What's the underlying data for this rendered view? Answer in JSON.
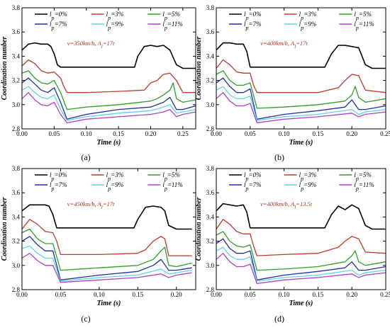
{
  "chart_data": [
    {
      "type": "line",
      "panel_label": "(a)",
      "annotation": "v=350km/h, A_l=17t",
      "xlabel": "Time (s)",
      "ylabel": "Coordination number",
      "xlim": [
        0,
        0.27
      ],
      "ylim": [
        2.8,
        3.8
      ],
      "xticks": [
        "0.00",
        "0.05",
        "0.10",
        "0.15",
        "0.20",
        "0.25"
      ],
      "yticks": [
        "2.8",
        "3.0",
        "3.2",
        "3.4",
        "3.6",
        "3.8"
      ],
      "legend_position": "top",
      "series": [
        {
          "name": "l_p=0%",
          "color": "#000000",
          "x": [
            0,
            0.01,
            0.02,
            0.03,
            0.04,
            0.045,
            0.05,
            0.055,
            0.06,
            0.1,
            0.15,
            0.175,
            0.18,
            0.19,
            0.2,
            0.21,
            0.22,
            0.23,
            0.24,
            0.25,
            0.27
          ],
          "y": [
            3.45,
            3.5,
            3.51,
            3.5,
            3.5,
            3.48,
            3.42,
            3.33,
            3.31,
            3.31,
            3.31,
            3.31,
            3.4,
            3.48,
            3.49,
            3.48,
            3.49,
            3.45,
            3.33,
            3.3,
            3.3
          ]
        },
        {
          "name": "l_p=3%",
          "color": "#c0392b",
          "x": [
            0,
            0.01,
            0.02,
            0.03,
            0.04,
            0.05,
            0.06,
            0.065,
            0.07,
            0.1,
            0.15,
            0.19,
            0.2,
            0.21,
            0.22,
            0.23,
            0.24,
            0.25,
            0.27
          ],
          "y": [
            3.32,
            3.37,
            3.34,
            3.28,
            3.26,
            3.27,
            3.22,
            3.15,
            3.1,
            3.1,
            3.11,
            3.12,
            3.18,
            3.2,
            3.25,
            3.26,
            3.2,
            3.1,
            3.1
          ]
        },
        {
          "name": "l_p=5%",
          "color": "#2ca02c",
          "x": [
            0,
            0.01,
            0.02,
            0.03,
            0.04,
            0.05,
            0.06,
            0.07,
            0.1,
            0.15,
            0.2,
            0.21,
            0.22,
            0.23,
            0.235,
            0.24,
            0.25,
            0.27
          ],
          "y": [
            3.26,
            3.28,
            3.22,
            3.18,
            3.17,
            3.2,
            3.1,
            2.96,
            2.98,
            3.0,
            3.03,
            3.05,
            3.08,
            3.12,
            3.18,
            3.05,
            3.02,
            3.04
          ]
        },
        {
          "name": "l_p=7%",
          "color": "#1f2fa8",
          "x": [
            0,
            0.01,
            0.02,
            0.03,
            0.04,
            0.05,
            0.06,
            0.07,
            0.1,
            0.15,
            0.2,
            0.22,
            0.23,
            0.24,
            0.25,
            0.27
          ],
          "y": [
            3.18,
            3.22,
            3.17,
            3.12,
            3.1,
            3.14,
            3.02,
            2.88,
            2.92,
            2.96,
            2.98,
            3.02,
            3.06,
            2.96,
            2.96,
            2.99
          ]
        },
        {
          "name": "l_p=9%",
          "color": "#5fd3e6",
          "x": [
            0,
            0.01,
            0.02,
            0.03,
            0.04,
            0.05,
            0.06,
            0.07,
            0.1,
            0.15,
            0.2,
            0.22,
            0.23,
            0.24,
            0.25,
            0.27
          ],
          "y": [
            3.12,
            3.15,
            3.1,
            3.06,
            3.05,
            3.08,
            2.96,
            2.87,
            2.9,
            2.93,
            2.95,
            2.98,
            3.0,
            2.93,
            2.94,
            2.96
          ]
        },
        {
          "name": "l_p=11%",
          "color": "#b03ec8",
          "x": [
            0,
            0.01,
            0.02,
            0.03,
            0.04,
            0.05,
            0.06,
            0.07,
            0.1,
            0.15,
            0.2,
            0.22,
            0.23,
            0.24,
            0.25,
            0.27
          ],
          "y": [
            3.05,
            3.1,
            3.04,
            3.0,
            2.99,
            3.02,
            2.92,
            2.85,
            2.88,
            2.9,
            2.92,
            2.94,
            2.96,
            2.9,
            2.92,
            2.94
          ]
        }
      ]
    },
    {
      "type": "line",
      "panel_label": "(b)",
      "annotation": "v=400km/h, A_l=17t",
      "xlabel": "Time (s)",
      "ylabel": "Coordination number",
      "xlim": [
        0,
        0.25
      ],
      "ylim": [
        2.8,
        3.8
      ],
      "xticks": [
        "0.00",
        "0.05",
        "0.10",
        "0.15",
        "0.20",
        "0.25"
      ],
      "yticks": [
        "2.8",
        "3.0",
        "3.2",
        "3.4",
        "3.6",
        "3.8"
      ],
      "legend_position": "top",
      "series": [
        {
          "name": "l_p=0%",
          "color": "#000000",
          "x": [
            0,
            0.01,
            0.02,
            0.03,
            0.04,
            0.045,
            0.05,
            0.1,
            0.15,
            0.16,
            0.17,
            0.18,
            0.19,
            0.2,
            0.21,
            0.22,
            0.23,
            0.25
          ],
          "y": [
            3.45,
            3.51,
            3.51,
            3.5,
            3.5,
            3.44,
            3.31,
            3.31,
            3.31,
            3.31,
            3.42,
            3.49,
            3.49,
            3.48,
            3.47,
            3.33,
            3.3,
            3.3
          ]
        },
        {
          "name": "l_p=3%",
          "color": "#c0392b",
          "x": [
            0,
            0.01,
            0.02,
            0.03,
            0.04,
            0.05,
            0.055,
            0.06,
            0.1,
            0.15,
            0.18,
            0.19,
            0.2,
            0.21,
            0.22,
            0.25
          ],
          "y": [
            3.3,
            3.37,
            3.33,
            3.27,
            3.26,
            3.26,
            3.16,
            3.1,
            3.1,
            3.1,
            3.14,
            3.2,
            3.25,
            3.24,
            3.12,
            3.1
          ]
        },
        {
          "name": "l_p=5%",
          "color": "#2ca02c",
          "x": [
            0,
            0.01,
            0.02,
            0.03,
            0.04,
            0.05,
            0.06,
            0.1,
            0.15,
            0.19,
            0.2,
            0.205,
            0.21,
            0.22,
            0.25
          ],
          "y": [
            3.25,
            3.28,
            3.2,
            3.16,
            3.16,
            3.18,
            2.97,
            2.98,
            3.0,
            3.03,
            3.08,
            3.15,
            3.06,
            3.02,
            3.05
          ]
        },
        {
          "name": "l_p=7%",
          "color": "#1f2fa8",
          "x": [
            0,
            0.01,
            0.02,
            0.03,
            0.04,
            0.05,
            0.06,
            0.1,
            0.15,
            0.19,
            0.2,
            0.21,
            0.22,
            0.25
          ],
          "y": [
            3.18,
            3.22,
            3.15,
            3.1,
            3.1,
            3.13,
            2.88,
            2.92,
            2.95,
            2.98,
            3.04,
            2.96,
            2.96,
            2.99
          ]
        },
        {
          "name": "l_p=9%",
          "color": "#5fd3e6",
          "x": [
            0,
            0.01,
            0.02,
            0.03,
            0.04,
            0.05,
            0.06,
            0.1,
            0.15,
            0.2,
            0.21,
            0.22,
            0.25
          ],
          "y": [
            3.12,
            3.15,
            3.08,
            3.05,
            3.05,
            3.07,
            2.87,
            2.9,
            2.92,
            2.96,
            2.92,
            2.94,
            2.96
          ]
        },
        {
          "name": "l_p=11%",
          "color": "#b03ec8",
          "x": [
            0,
            0.01,
            0.02,
            0.03,
            0.04,
            0.05,
            0.06,
            0.1,
            0.15,
            0.2,
            0.21,
            0.22,
            0.25
          ],
          "y": [
            3.05,
            3.1,
            3.03,
            2.99,
            2.99,
            3.01,
            2.85,
            2.88,
            2.9,
            2.93,
            2.9,
            2.92,
            2.94
          ]
        }
      ]
    },
    {
      "type": "line",
      "panel_label": "(c)",
      "annotation": "v=450km/h, A_l=17t",
      "xlabel": "Time (s)",
      "ylabel": "Coordination number",
      "xlim": [
        0,
        0.225
      ],
      "ylim": [
        2.8,
        3.8
      ],
      "xticks": [
        "0.00",
        "0.05",
        "0.10",
        "0.15",
        "0.20"
      ],
      "yticks": [
        "2.8",
        "3.0",
        "3.2",
        "3.4",
        "3.6",
        "3.8"
      ],
      "legend_position": "top",
      "series": [
        {
          "name": "l_p=0%",
          "color": "#000000",
          "x": [
            0,
            0.01,
            0.02,
            0.03,
            0.035,
            0.04,
            0.045,
            0.1,
            0.145,
            0.15,
            0.16,
            0.17,
            0.18,
            0.185,
            0.19,
            0.2,
            0.22
          ],
          "y": [
            3.45,
            3.5,
            3.5,
            3.5,
            3.49,
            3.42,
            3.31,
            3.31,
            3.31,
            3.38,
            3.48,
            3.49,
            3.48,
            3.45,
            3.33,
            3.3,
            3.3
          ]
        },
        {
          "name": "l_p=3%",
          "color": "#c0392b",
          "x": [
            0,
            0.01,
            0.02,
            0.03,
            0.04,
            0.045,
            0.05,
            0.1,
            0.15,
            0.16,
            0.17,
            0.18,
            0.185,
            0.19,
            0.22
          ],
          "y": [
            3.3,
            3.38,
            3.34,
            3.28,
            3.27,
            3.2,
            3.09,
            3.09,
            3.1,
            3.13,
            3.2,
            3.24,
            3.22,
            3.08,
            3.08
          ]
        },
        {
          "name": "l_p=5%",
          "color": "#2ca02c",
          "x": [
            0,
            0.01,
            0.02,
            0.03,
            0.04,
            0.05,
            0.1,
            0.15,
            0.17,
            0.18,
            0.185,
            0.19,
            0.2,
            0.22
          ],
          "y": [
            3.27,
            3.3,
            3.22,
            3.18,
            3.18,
            2.96,
            2.98,
            3.0,
            3.05,
            3.12,
            3.15,
            3.0,
            2.99,
            3.02
          ]
        },
        {
          "name": "l_p=7%",
          "color": "#1f2fa8",
          "x": [
            0,
            0.01,
            0.02,
            0.03,
            0.04,
            0.05,
            0.1,
            0.15,
            0.17,
            0.18,
            0.19,
            0.2,
            0.22
          ],
          "y": [
            3.2,
            3.24,
            3.17,
            3.12,
            3.12,
            2.88,
            2.92,
            2.95,
            3.0,
            3.05,
            2.96,
            2.96,
            2.98
          ]
        },
        {
          "name": "l_p=9%",
          "color": "#5fd3e6",
          "x": [
            0,
            0.01,
            0.02,
            0.03,
            0.04,
            0.05,
            0.1,
            0.15,
            0.18,
            0.19,
            0.2,
            0.22
          ],
          "y": [
            3.14,
            3.16,
            3.1,
            3.06,
            3.06,
            2.87,
            2.9,
            2.92,
            2.97,
            2.93,
            2.94,
            2.96
          ]
        },
        {
          "name": "l_p=11%",
          "color": "#b03ec8",
          "x": [
            0,
            0.01,
            0.02,
            0.03,
            0.04,
            0.05,
            0.1,
            0.15,
            0.18,
            0.19,
            0.2,
            0.22
          ],
          "y": [
            3.06,
            3.1,
            3.04,
            3.0,
            3.0,
            2.86,
            2.88,
            2.9,
            2.93,
            2.9,
            2.92,
            2.94
          ]
        }
      ]
    },
    {
      "type": "line",
      "panel_label": "(d)",
      "annotation": "v=400km/h, A_l=13.5t",
      "xlabel": "Time (s)",
      "ylabel": "Coordination number",
      "xlim": [
        0,
        0.25
      ],
      "ylim": [
        2.8,
        3.8
      ],
      "xticks": [
        "0.00",
        "0.05",
        "0.10",
        "0.15",
        "0.20",
        "0.25"
      ],
      "yticks": [
        "2.8",
        "3.0",
        "3.2",
        "3.4",
        "3.6",
        "3.8"
      ],
      "legend_position": "top",
      "series": [
        {
          "name": "l_p=0%",
          "color": "#000000",
          "x": [
            0,
            0.01,
            0.02,
            0.03,
            0.04,
            0.045,
            0.05,
            0.1,
            0.15,
            0.16,
            0.17,
            0.18,
            0.19,
            0.2,
            0.21,
            0.22,
            0.23,
            0.25
          ],
          "y": [
            3.45,
            3.51,
            3.5,
            3.49,
            3.5,
            3.44,
            3.31,
            3.31,
            3.31,
            3.31,
            3.42,
            3.49,
            3.46,
            3.5,
            3.47,
            3.33,
            3.3,
            3.3
          ]
        },
        {
          "name": "l_p=3%",
          "color": "#c0392b",
          "x": [
            0,
            0.01,
            0.02,
            0.03,
            0.04,
            0.05,
            0.055,
            0.06,
            0.1,
            0.15,
            0.18,
            0.19,
            0.2,
            0.21,
            0.22,
            0.25
          ],
          "y": [
            3.3,
            3.38,
            3.34,
            3.28,
            3.26,
            3.26,
            3.16,
            3.08,
            3.09,
            3.1,
            3.15,
            3.2,
            3.24,
            3.22,
            3.11,
            3.1
          ]
        },
        {
          "name": "l_p=5%",
          "color": "#2ca02c",
          "x": [
            0,
            0.01,
            0.02,
            0.03,
            0.04,
            0.05,
            0.06,
            0.1,
            0.15,
            0.19,
            0.2,
            0.205,
            0.21,
            0.22,
            0.25
          ],
          "y": [
            3.25,
            3.28,
            3.2,
            3.16,
            3.15,
            3.17,
            2.96,
            2.97,
            2.99,
            3.03,
            3.08,
            3.12,
            3.03,
            3.0,
            3.03
          ]
        },
        {
          "name": "l_p=7%",
          "color": "#1f2fa8",
          "x": [
            0,
            0.01,
            0.02,
            0.03,
            0.04,
            0.05,
            0.06,
            0.1,
            0.15,
            0.19,
            0.2,
            0.21,
            0.22,
            0.25
          ],
          "y": [
            3.18,
            3.22,
            3.14,
            3.1,
            3.1,
            3.12,
            2.88,
            2.92,
            2.95,
            2.98,
            3.03,
            2.96,
            2.96,
            2.99
          ]
        },
        {
          "name": "l_p=9%",
          "color": "#5fd3e6",
          "x": [
            0,
            0.01,
            0.02,
            0.03,
            0.04,
            0.05,
            0.06,
            0.1,
            0.15,
            0.2,
            0.21,
            0.22,
            0.25
          ],
          "y": [
            3.12,
            3.15,
            3.08,
            3.05,
            3.05,
            3.07,
            2.87,
            2.9,
            2.92,
            2.96,
            2.92,
            2.94,
            2.96
          ]
        },
        {
          "name": "l_p=11%",
          "color": "#b03ec8",
          "x": [
            0,
            0.01,
            0.02,
            0.03,
            0.04,
            0.05,
            0.06,
            0.1,
            0.15,
            0.2,
            0.21,
            0.22,
            0.25
          ],
          "y": [
            3.05,
            3.1,
            3.03,
            2.99,
            2.99,
            3.01,
            2.85,
            2.88,
            2.9,
            2.93,
            2.9,
            2.92,
            2.94
          ]
        }
      ]
    }
  ]
}
